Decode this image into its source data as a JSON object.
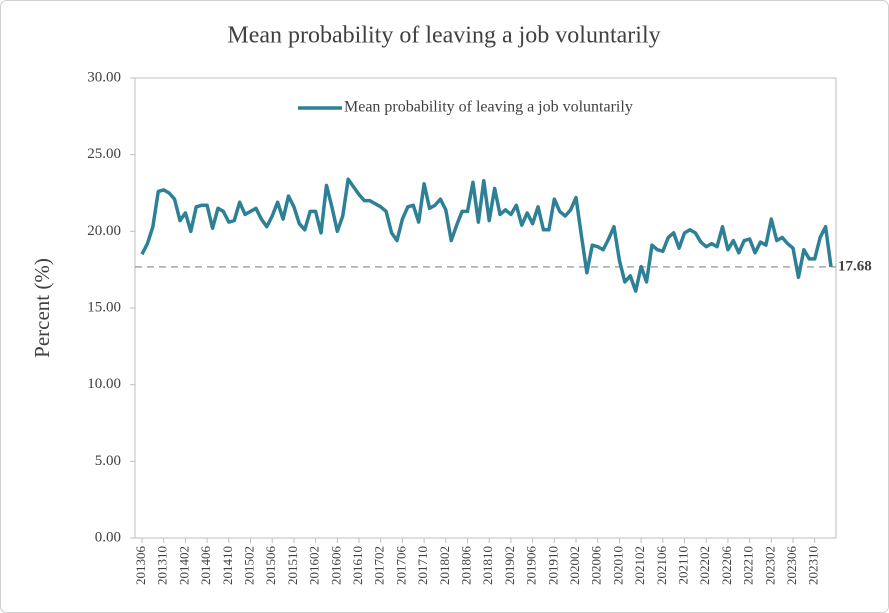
{
  "chart_data": {
    "type": "line",
    "title": "Mean probability  of leaving  a job voluntarily",
    "ylabel": "Percent (%)",
    "categories": [
      "201306",
      null,
      null,
      null,
      "201310",
      null,
      null,
      null,
      "201402",
      null,
      null,
      null,
      "201406",
      null,
      null,
      null,
      "201410",
      null,
      null,
      null,
      "201502",
      null,
      null,
      null,
      "201506",
      null,
      null,
      null,
      "201510",
      null,
      null,
      null,
      "201602",
      null,
      null,
      null,
      "201606",
      null,
      null,
      null,
      "201610",
      null,
      null,
      null,
      "201702",
      null,
      null,
      null,
      "201706",
      null,
      null,
      null,
      "201710",
      null,
      null,
      null,
      "201802",
      null,
      null,
      null,
      "201806",
      null,
      null,
      null,
      "201810",
      null,
      null,
      null,
      "201902",
      null,
      null,
      null,
      "201906",
      null,
      null,
      null,
      "201910",
      null,
      null,
      null,
      "202002",
      null,
      null,
      null,
      "202006",
      null,
      null,
      null,
      "202010",
      null,
      null,
      null,
      "202102",
      null,
      null,
      null,
      "202106",
      null,
      null,
      null,
      "202110",
      null,
      null,
      null,
      "202202",
      null,
      null,
      null,
      "202206",
      null,
      null,
      null,
      "202210",
      null,
      null,
      null,
      "202302",
      null,
      null,
      null,
      "202306",
      null,
      null,
      null,
      "202310",
      null,
      null,
      null
    ],
    "series": [
      {
        "name": "Mean probability of leaving a job voluntarily",
        "color": "#2e8096",
        "values": [
          18.5,
          19.2,
          20.3,
          22.6,
          22.7,
          22.5,
          22.1,
          20.7,
          21.2,
          20.0,
          21.6,
          21.7,
          21.7,
          20.2,
          21.5,
          21.3,
          20.6,
          20.7,
          21.9,
          21.1,
          21.3,
          21.5,
          20.8,
          20.3,
          21.0,
          21.9,
          20.8,
          22.3,
          21.6,
          20.5,
          20.1,
          21.3,
          21.3,
          19.9,
          23.0,
          21.6,
          20.0,
          21.0,
          23.4,
          22.9,
          22.4,
          22.0,
          22.0,
          21.8,
          21.6,
          21.3,
          19.9,
          19.4,
          20.8,
          21.6,
          21.7,
          20.6,
          23.1,
          21.5,
          21.7,
          22.1,
          21.4,
          19.4,
          20.4,
          21.3,
          21.3,
          23.2,
          20.6,
          23.3,
          20.7,
          22.8,
          21.1,
          21.4,
          21.1,
          21.7,
          20.4,
          21.2,
          20.5,
          21.6,
          20.1,
          20.1,
          22.1,
          21.3,
          21.0,
          21.4,
          22.2,
          19.7,
          17.3,
          19.1,
          19.0,
          18.8,
          19.5,
          20.3,
          18.1,
          16.7,
          17.1,
          16.1,
          17.7,
          16.7,
          19.1,
          18.8,
          18.7,
          19.6,
          19.9,
          18.9,
          19.9,
          20.1,
          19.9,
          19.3,
          19.0,
          19.2,
          19.0,
          20.3,
          18.8,
          19.4,
          18.6,
          19.4,
          19.5,
          18.6,
          19.3,
          19.1,
          20.8,
          19.4,
          19.6,
          19.2,
          18.9,
          17.0,
          18.8,
          18.2,
          18.2,
          19.6,
          20.3,
          17.68
        ]
      }
    ],
    "reference_line": 17.68,
    "ylim": [
      0,
      30
    ],
    "yticks": [
      {
        "value": 0,
        "label": "0.00"
      },
      {
        "value": 5,
        "label": "5.00"
      },
      {
        "value": 10,
        "label": "10.00"
      },
      {
        "value": 15,
        "label": "15.00"
      },
      {
        "value": 20,
        "label": "20.00"
      },
      {
        "value": 25,
        "label": "25.00"
      },
      {
        "value": 30,
        "label": "30.00"
      }
    ],
    "legend": "top"
  }
}
